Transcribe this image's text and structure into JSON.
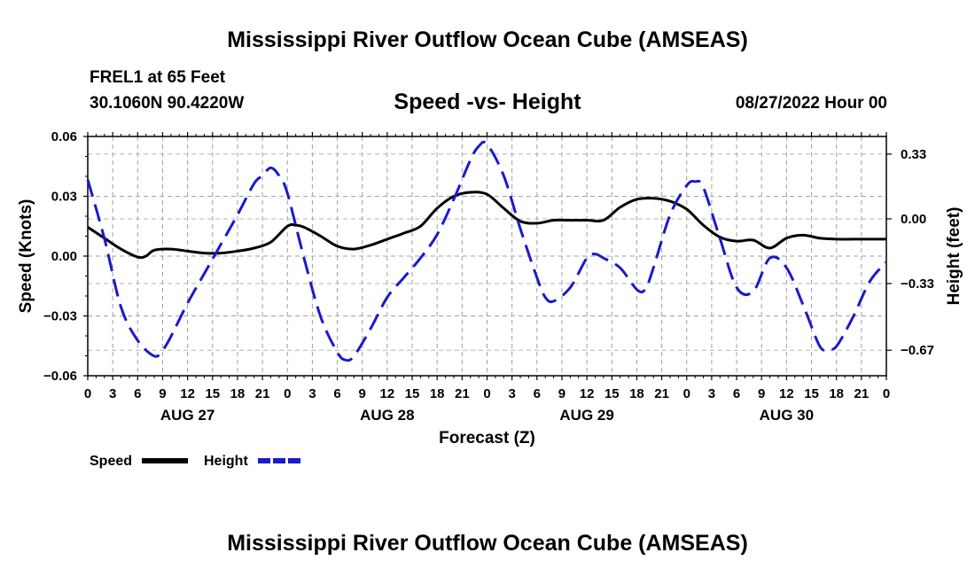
{
  "header": {
    "title": "Mississippi River Outflow Ocean Cube (AMSEAS)",
    "station": "FREL1 at 65 Feet",
    "coords": "30.1060N  90.4220W",
    "subtitle": "Speed -vs- Height",
    "datetime": "08/27/2022 Hour 00"
  },
  "footer": {
    "title": "Mississippi River Outflow Ocean Cube (AMSEAS)"
  },
  "chart_data": {
    "type": "line",
    "xlabel": "Forecast (Z)",
    "ylabel_left": "Speed (Knots)",
    "ylabel_right": "Height (feet)",
    "x_range_hours": [
      0,
      96
    ],
    "x_tick_hours": [
      0,
      3,
      6,
      9,
      12,
      15,
      18,
      21,
      24,
      27,
      30,
      33,
      36,
      39,
      42,
      45,
      48,
      51,
      54,
      57,
      60,
      63,
      66,
      69,
      72,
      75,
      78,
      81,
      84,
      87,
      90,
      93,
      96
    ],
    "x_tick_labels": [
      "0",
      "3",
      "6",
      "9",
      "12",
      "15",
      "18",
      "21",
      "0",
      "3",
      "6",
      "9",
      "12",
      "15",
      "18",
      "21",
      "0",
      "3",
      "6",
      "9",
      "12",
      "15",
      "18",
      "21",
      "0",
      "3",
      "6",
      "9",
      "12",
      "15",
      "18",
      "21",
      "0"
    ],
    "day_labels": [
      {
        "label": "AUG 27",
        "hour": 12
      },
      {
        "label": "AUG 28",
        "hour": 36
      },
      {
        "label": "AUG 29",
        "hour": 60
      },
      {
        "label": "AUG 30",
        "hour": 84
      }
    ],
    "left_axis": {
      "min": -0.06,
      "max": 0.06,
      "ticks": [
        -0.06,
        -0.03,
        0.0,
        0.03,
        0.06
      ],
      "tick_labels": [
        "−0.06",
        "−0.03",
        "0.00",
        "0.03",
        "0.06"
      ]
    },
    "right_axis": {
      "min": -0.8,
      "max": 0.42,
      "ticks": [
        0.33,
        0.0,
        -0.33,
        -0.67
      ],
      "tick_labels": [
        "0.33",
        "0.00",
        "−0.33",
        "−0.67"
      ]
    },
    "grid": true,
    "legend": [
      {
        "label": "Speed",
        "color": "#000000",
        "style": "solid"
      },
      {
        "label": "Height",
        "color": "#1a1acc",
        "style": "dashed"
      }
    ],
    "series": [
      {
        "name": "Speed",
        "axis": "left",
        "color": "#000000",
        "style": "solid",
        "x": [
          0,
          2,
          4,
          6,
          7,
          8,
          10,
          12,
          14,
          16,
          18,
          20,
          22,
          24,
          25,
          26,
          28,
          30,
          32,
          34,
          36,
          38,
          40,
          42,
          44,
          46,
          48,
          50,
          52,
          54,
          56,
          58,
          60,
          62,
          64,
          66,
          68,
          70,
          72,
          74,
          76,
          78,
          80,
          82,
          84,
          86,
          88,
          90,
          92,
          94,
          96
        ],
        "values": [
          0.0145,
          0.009,
          0.0035,
          -0.0005,
          0.0,
          0.003,
          0.0035,
          0.0025,
          0.0015,
          0.0015,
          0.0025,
          0.004,
          0.007,
          0.015,
          0.0155,
          0.0145,
          0.01,
          0.005,
          0.0035,
          0.0055,
          0.0085,
          0.0115,
          0.015,
          0.024,
          0.03,
          0.032,
          0.031,
          0.024,
          0.0175,
          0.0165,
          0.018,
          0.018,
          0.018,
          0.018,
          0.0245,
          0.0285,
          0.029,
          0.0275,
          0.0235,
          0.0155,
          0.0095,
          0.0075,
          0.008,
          0.004,
          0.009,
          0.0105,
          0.009,
          0.0085,
          0.0085,
          0.0085,
          0.0085
        ]
      },
      {
        "name": "Height",
        "axis": "right",
        "color": "#1a1acc",
        "style": "dashed",
        "x": [
          0,
          2,
          4,
          6,
          8,
          9,
          10,
          12,
          14,
          16,
          18,
          20,
          21,
          22,
          23,
          24,
          26,
          28,
          30,
          31,
          32,
          34,
          36,
          38,
          40,
          42,
          44,
          46,
          47,
          48,
          50,
          52,
          54,
          55,
          56,
          58,
          60,
          61,
          62,
          64,
          66,
          67,
          68,
          70,
          72,
          73,
          74,
          76,
          78,
          80,
          82,
          84,
          86,
          88,
          89,
          90,
          92,
          94,
          96
        ],
        "values": [
          0.2,
          -0.1,
          -0.45,
          -0.62,
          -0.7,
          -0.67,
          -0.6,
          -0.43,
          -0.28,
          -0.13,
          0.02,
          0.18,
          0.22,
          0.26,
          0.22,
          0.13,
          -0.2,
          -0.5,
          -0.68,
          -0.72,
          -0.7,
          -0.56,
          -0.4,
          -0.3,
          -0.2,
          -0.08,
          0.1,
          0.3,
          0.37,
          0.38,
          0.22,
          -0.05,
          -0.3,
          -0.4,
          -0.42,
          -0.35,
          -0.2,
          -0.18,
          -0.2,
          -0.25,
          -0.36,
          -0.36,
          -0.25,
          0.02,
          0.17,
          0.19,
          0.16,
          -0.1,
          -0.35,
          -0.37,
          -0.2,
          -0.25,
          -0.44,
          -0.65,
          -0.66,
          -0.65,
          -0.5,
          -0.32,
          -0.22
        ]
      }
    ]
  }
}
